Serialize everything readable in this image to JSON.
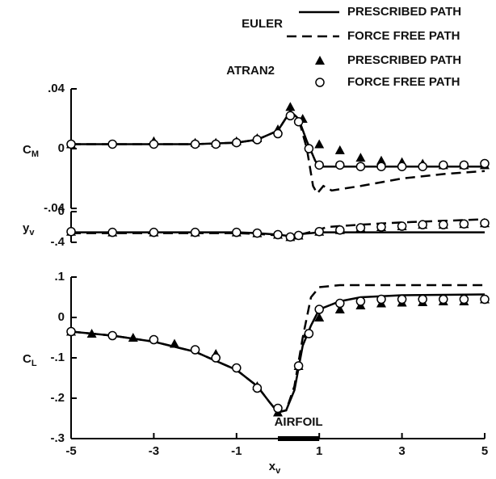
{
  "chart_data": {
    "type": "line",
    "xlabel": {
      "main": "x",
      "sub": "v"
    },
    "xlim": [
      -5,
      5
    ],
    "xticks": [
      -5,
      -3,
      -1,
      1,
      3,
      5
    ],
    "annotation": {
      "label": "AIRFOIL",
      "x": [
        0,
        1
      ]
    },
    "legend_groups": [
      "EULER",
      "ATRAN2"
    ],
    "series": [
      {
        "name": "PRESCRIBED PATH",
        "group": 0,
        "style": "solid",
        "color": "#000000"
      },
      {
        "name": "FORCE FREE PATH",
        "group": 0,
        "style": "dashed",
        "color": "#000000"
      },
      {
        "name": "PRESCRIBED PATH",
        "group": 1,
        "style": "triangle",
        "color": "#000000"
      },
      {
        "name": "FORCE FREE PATH",
        "group": 1,
        "style": "circle",
        "color": "#000000"
      }
    ],
    "panels": [
      {
        "ylabel": {
          "main": "C",
          "sub": "M"
        },
        "ylim": [
          -0.04,
          0.04
        ],
        "yticks": [
          {
            "value": -0.04,
            "label": "-.04"
          },
          0,
          {
            "value": 0.04,
            "label": ".04"
          }
        ],
        "series": [
          {
            "x": [
              -5,
              -4,
              -3,
              -2,
              -1,
              -0.5,
              0,
              0.3,
              0.5,
              0.7,
              0.9,
              1,
              1.5,
              2,
              3,
              4,
              5
            ],
            "values": [
              0.003,
              0.003,
              0.003,
              0.003,
              0.004,
              0.006,
              0.012,
              0.025,
              0.02,
              0.005,
              -0.008,
              -0.012,
              -0.012,
              -0.012,
              -0.012,
              -0.012,
              -0.012
            ]
          },
          {
            "x": [
              -5,
              -4,
              -3,
              -2,
              -1,
              -0.5,
              0,
              0.3,
              0.5,
              0.7,
              0.85,
              0.95,
              1.1,
              1.3,
              2,
              3,
              4,
              5
            ],
            "values": [
              0.003,
              0.003,
              0.003,
              0.003,
              0.004,
              0.006,
              0.012,
              0.025,
              0.02,
              0.0,
              -0.025,
              -0.03,
              -0.025,
              -0.028,
              -0.025,
              -0.02,
              -0.017,
              -0.015
            ]
          },
          {
            "x": [
              -5,
              -3,
              -2,
              -1.5,
              -1,
              -0.5,
              0,
              0.3,
              0.6,
              1,
              1.5,
              2,
              2.5,
              3,
              3.5,
              4,
              4.5,
              5
            ],
            "values": [
              0.003,
              0.005,
              0.004,
              0.004,
              0.005,
              0.007,
              0.013,
              0.028,
              0.02,
              0.003,
              -0.001,
              -0.006,
              -0.008,
              -0.009,
              -0.01,
              -0.011,
              -0.011,
              -0.011
            ]
          },
          {
            "x": [
              -5,
              -4,
              -3,
              -2,
              -1.5,
              -1,
              -0.5,
              0,
              0.3,
              0.5,
              0.75,
              1,
              1.5,
              2,
              2.5,
              3,
              3.5,
              4,
              4.5,
              5
            ],
            "values": [
              0.003,
              0.003,
              0.003,
              0.003,
              0.003,
              0.004,
              0.006,
              0.01,
              0.022,
              0.018,
              0.0,
              -0.011,
              -0.011,
              -0.012,
              -0.012,
              -0.012,
              -0.012,
              -0.011,
              -0.011,
              -0.01
            ]
          }
        ]
      },
      {
        "ylabel": {
          "main": "y",
          "sub": "v"
        },
        "ylim": [
          -0.4,
          0
        ],
        "yticks": [
          {
            "value": -0.4,
            "label": "-.4"
          },
          0
        ],
        "series": [
          {
            "x": [
              -5,
              -3,
              -1,
              -0.5,
              0,
              0.3,
              0.6,
              1,
              2,
              3,
              4,
              5
            ],
            "values": [
              -0.27,
              -0.27,
              -0.27,
              -0.28,
              -0.3,
              -0.32,
              -0.29,
              -0.27,
              -0.27,
              -0.27,
              -0.27,
              -0.27
            ]
          },
          {
            "x": [
              -5,
              -3,
              -1,
              -0.5,
              0,
              0.3,
              0.6,
              0.9,
              1.2,
              2,
              3,
              4,
              5
            ],
            "values": [
              -0.28,
              -0.28,
              -0.28,
              -0.29,
              -0.31,
              -0.33,
              -0.29,
              -0.25,
              -0.2,
              -0.17,
              -0.14,
              -0.12,
              -0.1
            ]
          },
          {
            "x": [
              -5,
              -4,
              -3,
              -2,
              -1,
              -0.5,
              0,
              0.3,
              0.5,
              1,
              1.5,
              2,
              2.5,
              3,
              3.5,
              4,
              4.5,
              5
            ],
            "values": [
              -0.26,
              -0.27,
              -0.27,
              -0.27,
              -0.27,
              -0.28,
              -0.3,
              -0.33,
              -0.31,
              -0.26,
              -0.24,
              -0.21,
              -0.2,
              -0.19,
              -0.17,
              -0.17,
              -0.16,
              -0.15
            ]
          },
          {
            "x": [
              -5,
              -4,
              -3,
              -2,
              -1,
              -0.5,
              0,
              0.3,
              0.5,
              1,
              1.5,
              2,
              2.5,
              3,
              3.5,
              4,
              4.5,
              5
            ],
            "values": [
              -0.26,
              -0.27,
              -0.27,
              -0.27,
              -0.27,
              -0.28,
              -0.3,
              -0.33,
              -0.31,
              -0.26,
              -0.24,
              -0.21,
              -0.2,
              -0.19,
              -0.17,
              -0.17,
              -0.16,
              -0.15
            ]
          }
        ]
      },
      {
        "ylabel": {
          "main": "C",
          "sub": "L"
        },
        "ylim": [
          -0.3,
          0.1
        ],
        "yticks": [
          {
            "value": -0.3,
            "label": "-.3"
          },
          {
            "value": -0.2,
            "label": "-.2"
          },
          {
            "value": -0.1,
            "label": "-.1"
          },
          0,
          {
            "value": 0.1,
            "label": ".1"
          }
        ],
        "series": [
          {
            "x": [
              -5,
              -4,
              -3,
              -2,
              -1,
              -0.5,
              -0.2,
              0,
              0.2,
              0.4,
              0.6,
              0.8,
              1,
              1.5,
              2,
              3,
              4,
              5
            ],
            "values": [
              -0.035,
              -0.045,
              -0.06,
              -0.085,
              -0.13,
              -0.17,
              -0.21,
              -0.235,
              -0.23,
              -0.18,
              -0.07,
              -0.02,
              0.02,
              0.04,
              0.05,
              0.055,
              0.056,
              0.057
            ]
          },
          {
            "x": [
              -5,
              -4,
              -3,
              -2,
              -1,
              -0.5,
              -0.2,
              0,
              0.2,
              0.4,
              0.6,
              0.8,
              1,
              1.5,
              5
            ],
            "values": [
              -0.035,
              -0.045,
              -0.06,
              -0.085,
              -0.13,
              -0.17,
              -0.21,
              -0.235,
              -0.23,
              -0.17,
              -0.05,
              0.05,
              0.075,
              0.08,
              0.08
            ]
          },
          {
            "x": [
              -5,
              -4.5,
              -3.5,
              -2.5,
              -1.5,
              -0.5,
              0,
              0.5,
              0.7,
              1,
              1.5,
              2,
              2.5,
              3,
              3.5,
              4,
              4.5,
              5
            ],
            "values": [
              -0.035,
              -0.04,
              -0.05,
              -0.065,
              -0.09,
              -0.17,
              -0.235,
              -0.12,
              -0.04,
              0.0,
              0.02,
              0.03,
              0.035,
              0.037,
              0.038,
              0.04,
              0.04,
              0.045
            ]
          },
          {
            "x": [
              -5,
              -4,
              -3,
              -2,
              -1.5,
              -1,
              -0.5,
              0,
              0.5,
              0.75,
              1,
              1.5,
              2,
              2.5,
              3,
              3.5,
              4,
              4.5,
              5
            ],
            "values": [
              -0.035,
              -0.045,
              -0.055,
              -0.08,
              -0.1,
              -0.125,
              -0.175,
              -0.225,
              -0.12,
              -0.04,
              0.02,
              0.035,
              0.04,
              0.045,
              0.045,
              0.045,
              0.045,
              0.045,
              0.045
            ]
          }
        ]
      }
    ]
  }
}
